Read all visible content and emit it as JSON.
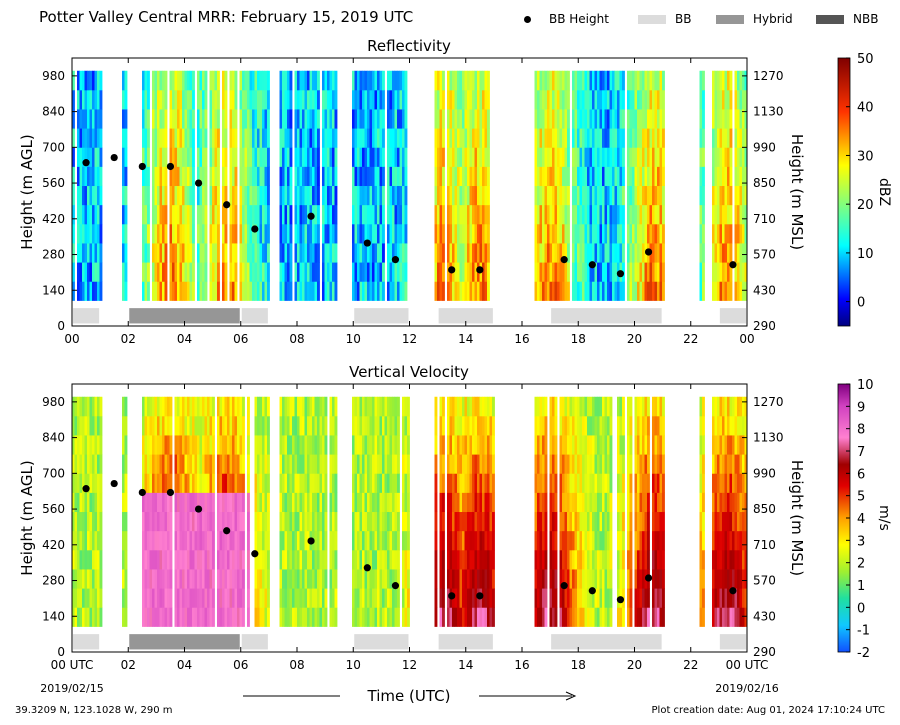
{
  "page_title": "Potter Valley Central MRR:  February 15, 2019 UTC",
  "legend": [
    {
      "label": "BB Height",
      "marker": "dot",
      "color": "#000000"
    },
    {
      "label": "BB",
      "marker": "swatch",
      "color": "#dcdcdc"
    },
    {
      "label": "Hybrid",
      "marker": "swatch",
      "color": "#969696"
    },
    {
      "label": "NBB",
      "marker": "swatch",
      "color": "#555555"
    }
  ],
  "footer": {
    "location": "39.3209 N, 123.1028 W, 290 m",
    "creation": "Plot creation date: Aug 01, 2024 17:10:24 UTC"
  },
  "x_axis": {
    "title": "Time (UTC)",
    "tick_labels_top": [
      "00",
      "02",
      "04",
      "06",
      "08",
      "10",
      "12",
      "14",
      "16",
      "18",
      "20",
      "22",
      "00"
    ],
    "tick_labels_bottom": [
      "00 UTC",
      "02",
      "04",
      "06",
      "08",
      "10",
      "12",
      "14",
      "16",
      "18",
      "20",
      "22",
      "00 UTC"
    ],
    "start_date": "2019/02/15",
    "end_date": "2019/02/16"
  },
  "chart_data": [
    {
      "type": "heatmap",
      "title": "Reflectivity",
      "field": "reflectivity",
      "ylabel": "Height (m AGL)",
      "y2label": "Height (m MSL)",
      "xlim": [
        0,
        24
      ],
      "ylim": [
        0,
        1050
      ],
      "yticks": [
        0,
        140,
        280,
        420,
        560,
        700,
        840,
        980
      ],
      "y2ticks": [
        290,
        430,
        570,
        710,
        850,
        990,
        1130,
        1270
      ],
      "colorbar": {
        "label": "dBZ",
        "min": -5,
        "max": 50,
        "ticks": [
          0,
          10,
          20,
          30,
          40,
          50
        ]
      },
      "bb_height_hours": [
        0.5,
        1.5,
        2.5,
        3.5,
        4.5,
        5.5,
        6.5,
        8.5,
        10.5,
        11.5,
        13.5,
        14.5,
        17.5,
        18.5,
        19.5,
        20.5,
        23.5
      ],
      "bb_height_m_agl": [
        640,
        660,
        625,
        625,
        560,
        475,
        380,
        430,
        325,
        260,
        220,
        220,
        260,
        240,
        205,
        290,
        240
      ],
      "bb_type_segments": [
        {
          "start": 0.0,
          "end": 1.0,
          "type": "BB"
        },
        {
          "start": 2.0,
          "end": 6.0,
          "type": "Hybrid"
        },
        {
          "start": 6.0,
          "end": 7.0,
          "type": "BB"
        },
        {
          "start": 10.0,
          "end": 12.0,
          "type": "BB"
        },
        {
          "start": 13.0,
          "end": 15.0,
          "type": "BB"
        },
        {
          "start": 17.0,
          "end": 21.0,
          "type": "BB"
        },
        {
          "start": 23.0,
          "end": 24.0,
          "type": "BB"
        }
      ]
    },
    {
      "type": "heatmap",
      "title": "Vertical Velocity",
      "field": "vertical_velocity",
      "ylabel": "Height (m AGL)",
      "y2label": "Height (m MSL)",
      "xlim": [
        0,
        24
      ],
      "ylim": [
        0,
        1050
      ],
      "yticks": [
        0,
        140,
        280,
        420,
        560,
        700,
        840,
        980
      ],
      "y2ticks": [
        290,
        430,
        570,
        710,
        850,
        990,
        1130,
        1270
      ],
      "colorbar": {
        "label": "m/s",
        "min": -2,
        "max": 10,
        "ticks": [
          -2,
          -1,
          0,
          1,
          2,
          3,
          4,
          5,
          6,
          7,
          8,
          9,
          10
        ]
      },
      "bb_height_hours": [
        0.5,
        1.5,
        2.5,
        3.5,
        4.5,
        5.5,
        6.5,
        8.5,
        10.5,
        11.5,
        13.5,
        14.5,
        17.5,
        18.5,
        19.5,
        20.5,
        23.5
      ],
      "bb_height_m_agl": [
        640,
        660,
        625,
        625,
        560,
        475,
        385,
        435,
        330,
        260,
        220,
        220,
        260,
        240,
        205,
        290,
        240
      ],
      "bb_type_segments": [
        {
          "start": 0.0,
          "end": 1.0,
          "type": "BB"
        },
        {
          "start": 2.0,
          "end": 6.0,
          "type": "Hybrid"
        },
        {
          "start": 6.0,
          "end": 7.0,
          "type": "BB"
        },
        {
          "start": 10.0,
          "end": 12.0,
          "type": "BB"
        },
        {
          "start": 13.0,
          "end": 15.0,
          "type": "BB"
        },
        {
          "start": 17.0,
          "end": 21.0,
          "type": "BB"
        },
        {
          "start": 23.0,
          "end": 24.0,
          "type": "BB"
        }
      ]
    }
  ],
  "data_gaps": [
    [
      1.05,
      1.8
    ],
    [
      2.0,
      2.45
    ],
    [
      7.0,
      7.4
    ],
    [
      9.4,
      9.95
    ],
    [
      12.0,
      12.9
    ],
    [
      15.0,
      16.45
    ],
    [
      21.05,
      22.3
    ],
    [
      22.45,
      22.75
    ]
  ],
  "echo_top_m": 1000,
  "echo_bottom_m": 100,
  "colors": {
    "bb": "#dcdcdc",
    "hybrid": "#969696",
    "nbb": "#555555"
  }
}
